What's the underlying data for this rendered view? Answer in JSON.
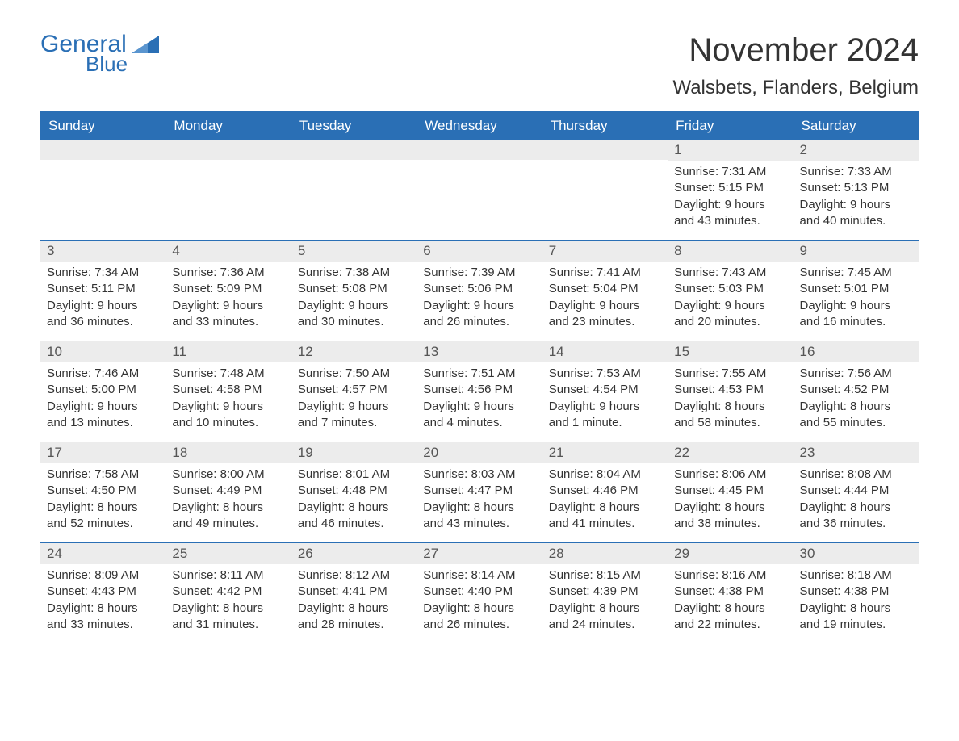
{
  "logo": {
    "word1": "General",
    "word2": "Blue"
  },
  "title": "November 2024",
  "location": "Walsbets, Flanders, Belgium",
  "colors": {
    "brand": "#2a6fb5",
    "header_bg": "#2a6fb5",
    "header_text": "#ffffff",
    "daynum_bg": "#ececec",
    "daynum_text": "#555555",
    "body_text": "#333333",
    "page_bg": "#ffffff"
  },
  "typography": {
    "title_fontsize": 40,
    "location_fontsize": 24,
    "dow_fontsize": 17,
    "daynum_fontsize": 17,
    "body_fontsize": 15,
    "font_family": "Arial"
  },
  "layout": {
    "columns": 7,
    "rows": 5,
    "week_border_color": "#2a6fb5"
  },
  "days_of_week": [
    "Sunday",
    "Monday",
    "Tuesday",
    "Wednesday",
    "Thursday",
    "Friday",
    "Saturday"
  ],
  "weeks": [
    [
      {
        "blank": true
      },
      {
        "blank": true
      },
      {
        "blank": true
      },
      {
        "blank": true
      },
      {
        "blank": true
      },
      {
        "num": "1",
        "sunrise": "Sunrise: 7:31 AM",
        "sunset": "Sunset: 5:15 PM",
        "day1": "Daylight: 9 hours",
        "day2": "and 43 minutes."
      },
      {
        "num": "2",
        "sunrise": "Sunrise: 7:33 AM",
        "sunset": "Sunset: 5:13 PM",
        "day1": "Daylight: 9 hours",
        "day2": "and 40 minutes."
      }
    ],
    [
      {
        "num": "3",
        "sunrise": "Sunrise: 7:34 AM",
        "sunset": "Sunset: 5:11 PM",
        "day1": "Daylight: 9 hours",
        "day2": "and 36 minutes."
      },
      {
        "num": "4",
        "sunrise": "Sunrise: 7:36 AM",
        "sunset": "Sunset: 5:09 PM",
        "day1": "Daylight: 9 hours",
        "day2": "and 33 minutes."
      },
      {
        "num": "5",
        "sunrise": "Sunrise: 7:38 AM",
        "sunset": "Sunset: 5:08 PM",
        "day1": "Daylight: 9 hours",
        "day2": "and 30 minutes."
      },
      {
        "num": "6",
        "sunrise": "Sunrise: 7:39 AM",
        "sunset": "Sunset: 5:06 PM",
        "day1": "Daylight: 9 hours",
        "day2": "and 26 minutes."
      },
      {
        "num": "7",
        "sunrise": "Sunrise: 7:41 AM",
        "sunset": "Sunset: 5:04 PM",
        "day1": "Daylight: 9 hours",
        "day2": "and 23 minutes."
      },
      {
        "num": "8",
        "sunrise": "Sunrise: 7:43 AM",
        "sunset": "Sunset: 5:03 PM",
        "day1": "Daylight: 9 hours",
        "day2": "and 20 minutes."
      },
      {
        "num": "9",
        "sunrise": "Sunrise: 7:45 AM",
        "sunset": "Sunset: 5:01 PM",
        "day1": "Daylight: 9 hours",
        "day2": "and 16 minutes."
      }
    ],
    [
      {
        "num": "10",
        "sunrise": "Sunrise: 7:46 AM",
        "sunset": "Sunset: 5:00 PM",
        "day1": "Daylight: 9 hours",
        "day2": "and 13 minutes."
      },
      {
        "num": "11",
        "sunrise": "Sunrise: 7:48 AM",
        "sunset": "Sunset: 4:58 PM",
        "day1": "Daylight: 9 hours",
        "day2": "and 10 minutes."
      },
      {
        "num": "12",
        "sunrise": "Sunrise: 7:50 AM",
        "sunset": "Sunset: 4:57 PM",
        "day1": "Daylight: 9 hours",
        "day2": "and 7 minutes."
      },
      {
        "num": "13",
        "sunrise": "Sunrise: 7:51 AM",
        "sunset": "Sunset: 4:56 PM",
        "day1": "Daylight: 9 hours",
        "day2": "and 4 minutes."
      },
      {
        "num": "14",
        "sunrise": "Sunrise: 7:53 AM",
        "sunset": "Sunset: 4:54 PM",
        "day1": "Daylight: 9 hours",
        "day2": "and 1 minute."
      },
      {
        "num": "15",
        "sunrise": "Sunrise: 7:55 AM",
        "sunset": "Sunset: 4:53 PM",
        "day1": "Daylight: 8 hours",
        "day2": "and 58 minutes."
      },
      {
        "num": "16",
        "sunrise": "Sunrise: 7:56 AM",
        "sunset": "Sunset: 4:52 PM",
        "day1": "Daylight: 8 hours",
        "day2": "and 55 minutes."
      }
    ],
    [
      {
        "num": "17",
        "sunrise": "Sunrise: 7:58 AM",
        "sunset": "Sunset: 4:50 PM",
        "day1": "Daylight: 8 hours",
        "day2": "and 52 minutes."
      },
      {
        "num": "18",
        "sunrise": "Sunrise: 8:00 AM",
        "sunset": "Sunset: 4:49 PM",
        "day1": "Daylight: 8 hours",
        "day2": "and 49 minutes."
      },
      {
        "num": "19",
        "sunrise": "Sunrise: 8:01 AM",
        "sunset": "Sunset: 4:48 PM",
        "day1": "Daylight: 8 hours",
        "day2": "and 46 minutes."
      },
      {
        "num": "20",
        "sunrise": "Sunrise: 8:03 AM",
        "sunset": "Sunset: 4:47 PM",
        "day1": "Daylight: 8 hours",
        "day2": "and 43 minutes."
      },
      {
        "num": "21",
        "sunrise": "Sunrise: 8:04 AM",
        "sunset": "Sunset: 4:46 PM",
        "day1": "Daylight: 8 hours",
        "day2": "and 41 minutes."
      },
      {
        "num": "22",
        "sunrise": "Sunrise: 8:06 AM",
        "sunset": "Sunset: 4:45 PM",
        "day1": "Daylight: 8 hours",
        "day2": "and 38 minutes."
      },
      {
        "num": "23",
        "sunrise": "Sunrise: 8:08 AM",
        "sunset": "Sunset: 4:44 PM",
        "day1": "Daylight: 8 hours",
        "day2": "and 36 minutes."
      }
    ],
    [
      {
        "num": "24",
        "sunrise": "Sunrise: 8:09 AM",
        "sunset": "Sunset: 4:43 PM",
        "day1": "Daylight: 8 hours",
        "day2": "and 33 minutes."
      },
      {
        "num": "25",
        "sunrise": "Sunrise: 8:11 AM",
        "sunset": "Sunset: 4:42 PM",
        "day1": "Daylight: 8 hours",
        "day2": "and 31 minutes."
      },
      {
        "num": "26",
        "sunrise": "Sunrise: 8:12 AM",
        "sunset": "Sunset: 4:41 PM",
        "day1": "Daylight: 8 hours",
        "day2": "and 28 minutes."
      },
      {
        "num": "27",
        "sunrise": "Sunrise: 8:14 AM",
        "sunset": "Sunset: 4:40 PM",
        "day1": "Daylight: 8 hours",
        "day2": "and 26 minutes."
      },
      {
        "num": "28",
        "sunrise": "Sunrise: 8:15 AM",
        "sunset": "Sunset: 4:39 PM",
        "day1": "Daylight: 8 hours",
        "day2": "and 24 minutes."
      },
      {
        "num": "29",
        "sunrise": "Sunrise: 8:16 AM",
        "sunset": "Sunset: 4:38 PM",
        "day1": "Daylight: 8 hours",
        "day2": "and 22 minutes."
      },
      {
        "num": "30",
        "sunrise": "Sunrise: 8:18 AM",
        "sunset": "Sunset: 4:38 PM",
        "day1": "Daylight: 8 hours",
        "day2": "and 19 minutes."
      }
    ]
  ]
}
